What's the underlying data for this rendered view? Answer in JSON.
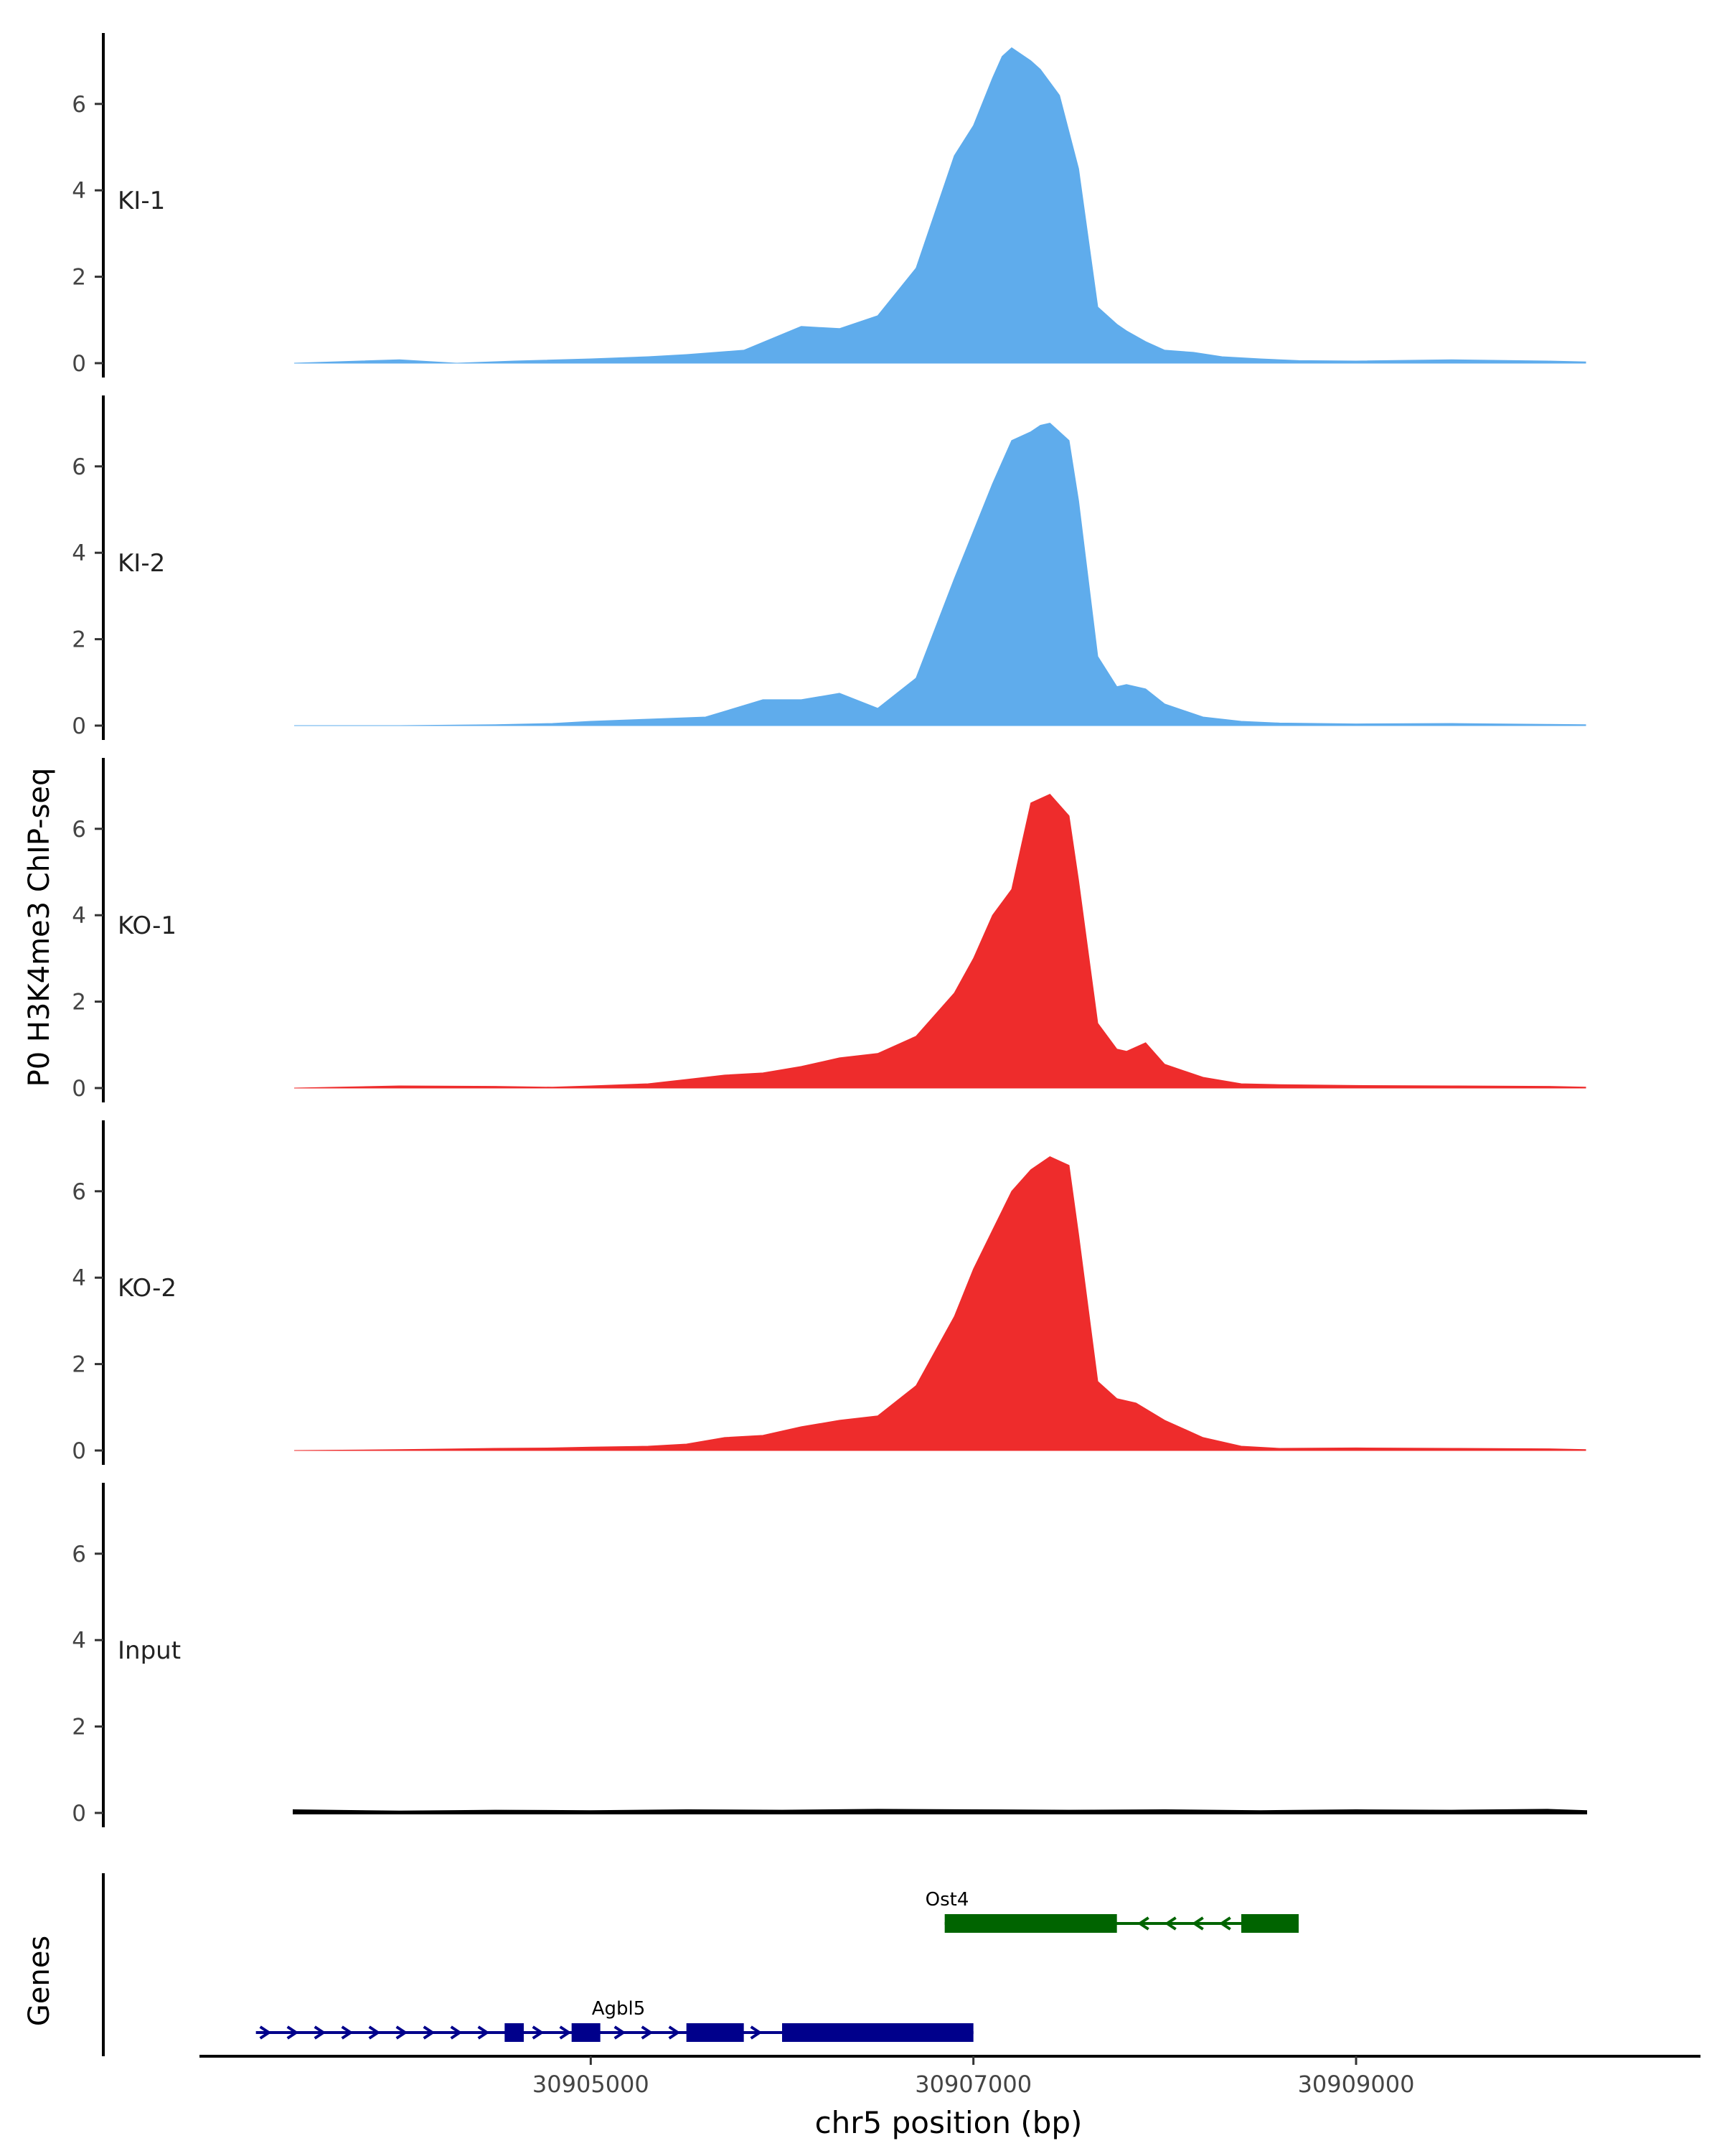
{
  "chart_data": {
    "type": "area",
    "ylabel": "P0 H3K4me3 ChIP-seq",
    "xlabel": "chr5 position (bp)",
    "y_ticks": [
      0,
      2,
      4,
      6
    ],
    "ylim": [
      0,
      7.6
    ],
    "xlim": [
      30903000,
      30910800
    ],
    "x_ticks": [
      30905000,
      30907000,
      30909000
    ],
    "x_tick_labels": [
      "30905000",
      "30907000",
      "30909000"
    ],
    "colors": {
      "KI": "#5FACEC",
      "KO": "#EE2C2C",
      "Input": "#000000"
    },
    "series": [
      {
        "name": "KI-1",
        "color": "#5FACEC",
        "x": [
          30903450,
          30904000,
          30904300,
          30904600,
          30905000,
          30905300,
          30905500,
          30905800,
          30906100,
          30906300,
          30906500,
          30906700,
          30906900,
          30907000,
          30907100,
          30907150,
          30907200,
          30907300,
          30907350,
          30907450,
          30907550,
          30907650,
          30907750,
          30907800,
          30907900,
          30908000,
          30908150,
          30908300,
          30908500,
          30908700,
          30909000,
          30909500,
          30910000,
          30910200
        ],
        "y": [
          0,
          0.08,
          0,
          0.05,
          0.1,
          0.15,
          0.2,
          0.3,
          0.85,
          0.8,
          1.1,
          2.2,
          4.8,
          5.5,
          6.6,
          7.1,
          7.3,
          7.0,
          6.8,
          6.2,
          4.5,
          1.3,
          0.9,
          0.75,
          0.5,
          0.3,
          0.25,
          0.15,
          0.1,
          0.06,
          0.05,
          0.08,
          0.05,
          0.03
        ]
      },
      {
        "name": "KI-2",
        "color": "#5FACEC",
        "x": [
          30903450,
          30904000,
          30904500,
          30904800,
          30905000,
          30905300,
          30905600,
          30905900,
          30906100,
          30906300,
          30906500,
          30906700,
          30906900,
          30907000,
          30907100,
          30907200,
          30907300,
          30907350,
          30907400,
          30907500,
          30907550,
          30907650,
          30907750,
          30907800,
          30907900,
          30908000,
          30908200,
          30908400,
          30908600,
          30908800,
          30909000,
          30909500,
          30910000,
          30910200
        ],
        "y": [
          0,
          0,
          0.02,
          0.05,
          0.1,
          0.15,
          0.2,
          0.6,
          0.6,
          0.75,
          0.4,
          1.1,
          3.4,
          4.5,
          5.6,
          6.6,
          6.8,
          6.95,
          7.0,
          6.6,
          5.2,
          1.6,
          0.9,
          0.95,
          0.85,
          0.5,
          0.2,
          0.1,
          0.06,
          0.05,
          0.04,
          0.05,
          0.03,
          0.02
        ]
      },
      {
        "name": "KO-1",
        "color": "#EE2C2C",
        "x": [
          30903450,
          30904000,
          30904500,
          30904800,
          30905000,
          30905300,
          30905500,
          30905700,
          30905900,
          30906100,
          30906300,
          30906500,
          30906700,
          30906900,
          30907000,
          30907100,
          30907200,
          30907250,
          30907300,
          30907400,
          30907500,
          30907550,
          30907650,
          30907750,
          30907800,
          30907900,
          30908000,
          30908200,
          30908400,
          30908600,
          30909000,
          30909500,
          30910000,
          30910200
        ],
        "y": [
          0,
          0.05,
          0.04,
          0.02,
          0.05,
          0.1,
          0.2,
          0.3,
          0.35,
          0.5,
          0.7,
          0.8,
          1.2,
          2.2,
          3.0,
          4.0,
          4.6,
          5.6,
          6.6,
          6.8,
          6.3,
          4.8,
          1.5,
          0.9,
          0.85,
          1.05,
          0.55,
          0.25,
          0.1,
          0.08,
          0.06,
          0.05,
          0.04,
          0.02
        ]
      },
      {
        "name": "KO-2",
        "color": "#EE2C2C",
        "x": [
          30903450,
          30904000,
          30904500,
          30904800,
          30905000,
          30905300,
          30905500,
          30905700,
          30905900,
          30906100,
          30906300,
          30906500,
          30906700,
          30906900,
          30907000,
          30907100,
          30907200,
          30907300,
          30907400,
          30907500,
          30907550,
          30907650,
          30907750,
          30907850,
          30908000,
          30908200,
          30908400,
          30908600,
          30909000,
          30909500,
          30910000,
          30910200
        ],
        "y": [
          0,
          0.02,
          0.05,
          0.06,
          0.08,
          0.1,
          0.15,
          0.3,
          0.35,
          0.55,
          0.7,
          0.8,
          1.5,
          3.1,
          4.2,
          5.1,
          6.0,
          6.5,
          6.8,
          6.6,
          5.0,
          1.6,
          1.2,
          1.1,
          0.7,
          0.3,
          0.1,
          0.05,
          0.06,
          0.05,
          0.04,
          0.02
        ]
      },
      {
        "name": "Input",
        "color": "#000000",
        "x": [
          30903450,
          30904000,
          30904500,
          30905000,
          30905500,
          30906000,
          30906500,
          30907000,
          30907500,
          30908000,
          30908500,
          30909000,
          30909500,
          30910000,
          30910200
        ],
        "y": [
          0.05,
          0.02,
          0.04,
          0.03,
          0.05,
          0.04,
          0.06,
          0.05,
          0.04,
          0.05,
          0.03,
          0.05,
          0.04,
          0.06,
          0.03
        ]
      }
    ],
    "genes_label": "Genes",
    "genes": [
      {
        "name": "Ost4",
        "color": "#006400",
        "strand": "-",
        "start": 30906850,
        "end": 30908700,
        "exons": [
          [
            30906850,
            30907750
          ],
          [
            30908400,
            30908700
          ]
        ]
      },
      {
        "name": "Agbl5",
        "color": "#00008B",
        "strand": "+",
        "start": 30903250,
        "end": 30907000,
        "exons": [
          [
            30904550,
            30904650
          ],
          [
            30904900,
            30905050
          ],
          [
            30905500,
            30905800
          ],
          [
            30906000,
            30907000
          ]
        ]
      }
    ]
  }
}
